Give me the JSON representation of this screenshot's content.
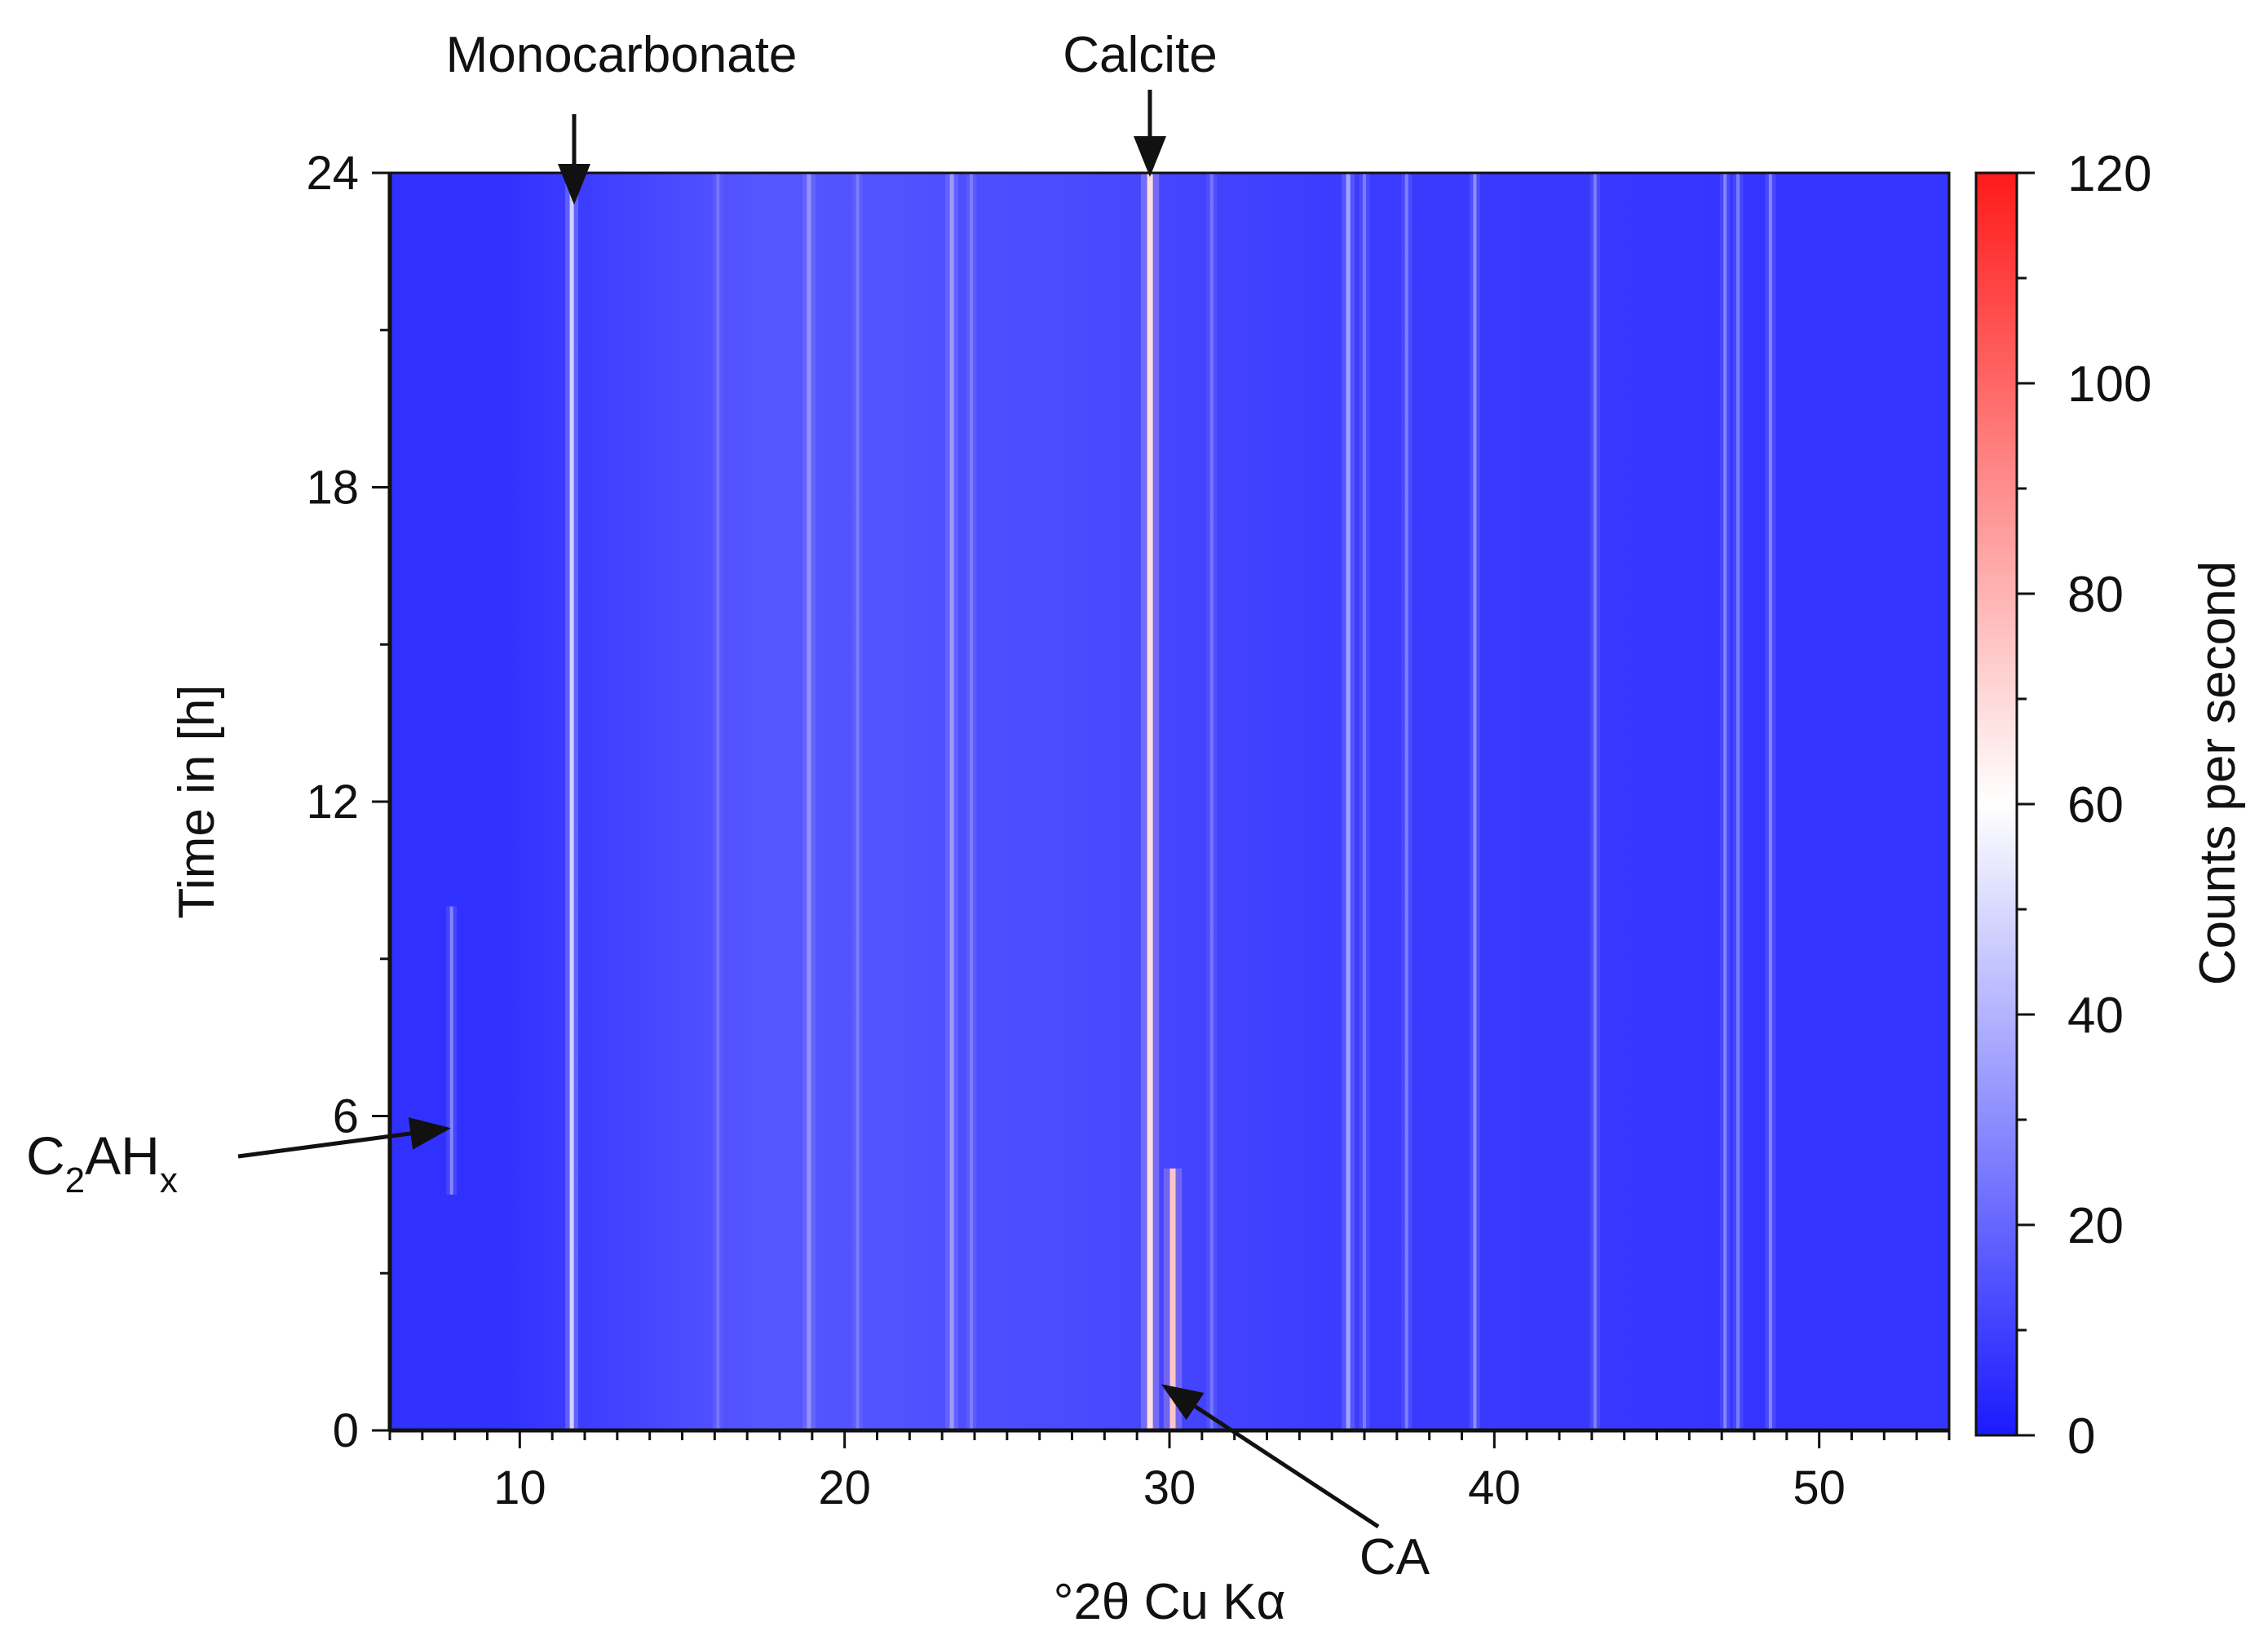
{
  "chart_data": {
    "type": "heatmap",
    "title": "",
    "xlabel": "°2θ Cu Kα",
    "ylabel": "Time in [h]",
    "colorbar_label": "Counts per second",
    "xlim": [
      6,
      54
    ],
    "ylim": [
      0,
      24
    ],
    "clim": [
      0,
      120
    ],
    "x_ticks": [
      "10",
      "20",
      "30",
      "40",
      "50"
    ],
    "y_ticks": [
      "0",
      "6",
      "12",
      "18",
      "24"
    ],
    "colorbar_ticks": [
      "0",
      "20",
      "40",
      "60",
      "80",
      "100",
      "120"
    ],
    "colorscale": {
      "low": "#1a1aff",
      "mid_value": 60,
      "mid": "#ffffff",
      "high": "#ff1a1a"
    },
    "background_counts": [
      {
        "x_from": 6,
        "x_to": 13,
        "counts": 6
      },
      {
        "x_from": 13,
        "x_to": 22,
        "counts": 16
      },
      {
        "x_from": 22,
        "x_to": 30,
        "counts": 13
      },
      {
        "x_from": 30,
        "x_to": 40,
        "counts": 9
      },
      {
        "x_from": 40,
        "x_to": 54,
        "counts": 7
      }
    ],
    "peaks": [
      {
        "x": 7.9,
        "t_start": 4.5,
        "t_end": 10,
        "counts": 28
      },
      {
        "x": 11.6,
        "t_start": 0,
        "t_end": 24,
        "counts": 48
      },
      {
        "x": 16.1,
        "t_start": 0,
        "t_end": 24,
        "counts": 24
      },
      {
        "x": 18.9,
        "t_start": 0,
        "t_end": 24,
        "counts": 32
      },
      {
        "x": 20.4,
        "t_start": 0,
        "t_end": 24,
        "counts": 26
      },
      {
        "x": 23.3,
        "t_start": 0,
        "t_end": 24,
        "counts": 34
      },
      {
        "x": 23.9,
        "t_start": 0,
        "t_end": 24,
        "counts": 26
      },
      {
        "x": 29.4,
        "t_start": 0,
        "t_end": 24,
        "counts": 68
      },
      {
        "x": 30.1,
        "t_start": 0,
        "t_end": 5,
        "counts": 75
      },
      {
        "x": 31.3,
        "t_start": 0,
        "t_end": 24,
        "counts": 24
      },
      {
        "x": 35.5,
        "t_start": 0,
        "t_end": 24,
        "counts": 36
      },
      {
        "x": 36.0,
        "t_start": 0,
        "t_end": 24,
        "counts": 26
      },
      {
        "x": 37.3,
        "t_start": 0,
        "t_end": 24,
        "counts": 26
      },
      {
        "x": 39.4,
        "t_start": 0,
        "t_end": 24,
        "counts": 30
      },
      {
        "x": 43.1,
        "t_start": 0,
        "t_end": 24,
        "counts": 26
      },
      {
        "x": 47.1,
        "t_start": 0,
        "t_end": 24,
        "counts": 28
      },
      {
        "x": 47.5,
        "t_start": 0,
        "t_end": 24,
        "counts": 26
      },
      {
        "x": 48.5,
        "t_start": 0,
        "t_end": 24,
        "counts": 28
      }
    ],
    "annotations": [
      {
        "text": "Monocarbonate",
        "arrow_x": 11.6,
        "arrow_t": 24
      },
      {
        "text": "Calcite",
        "arrow_x": 29.4,
        "arrow_t": 24
      },
      {
        "text": "CA",
        "arrow_x": 30.1,
        "arrow_t": 0.6
      },
      {
        "text_main": "C",
        "sub1": "2",
        "text_mid": "AH",
        "sub2": "x",
        "arrow_x": 8.0,
        "arrow_t": 5.7
      }
    ]
  }
}
